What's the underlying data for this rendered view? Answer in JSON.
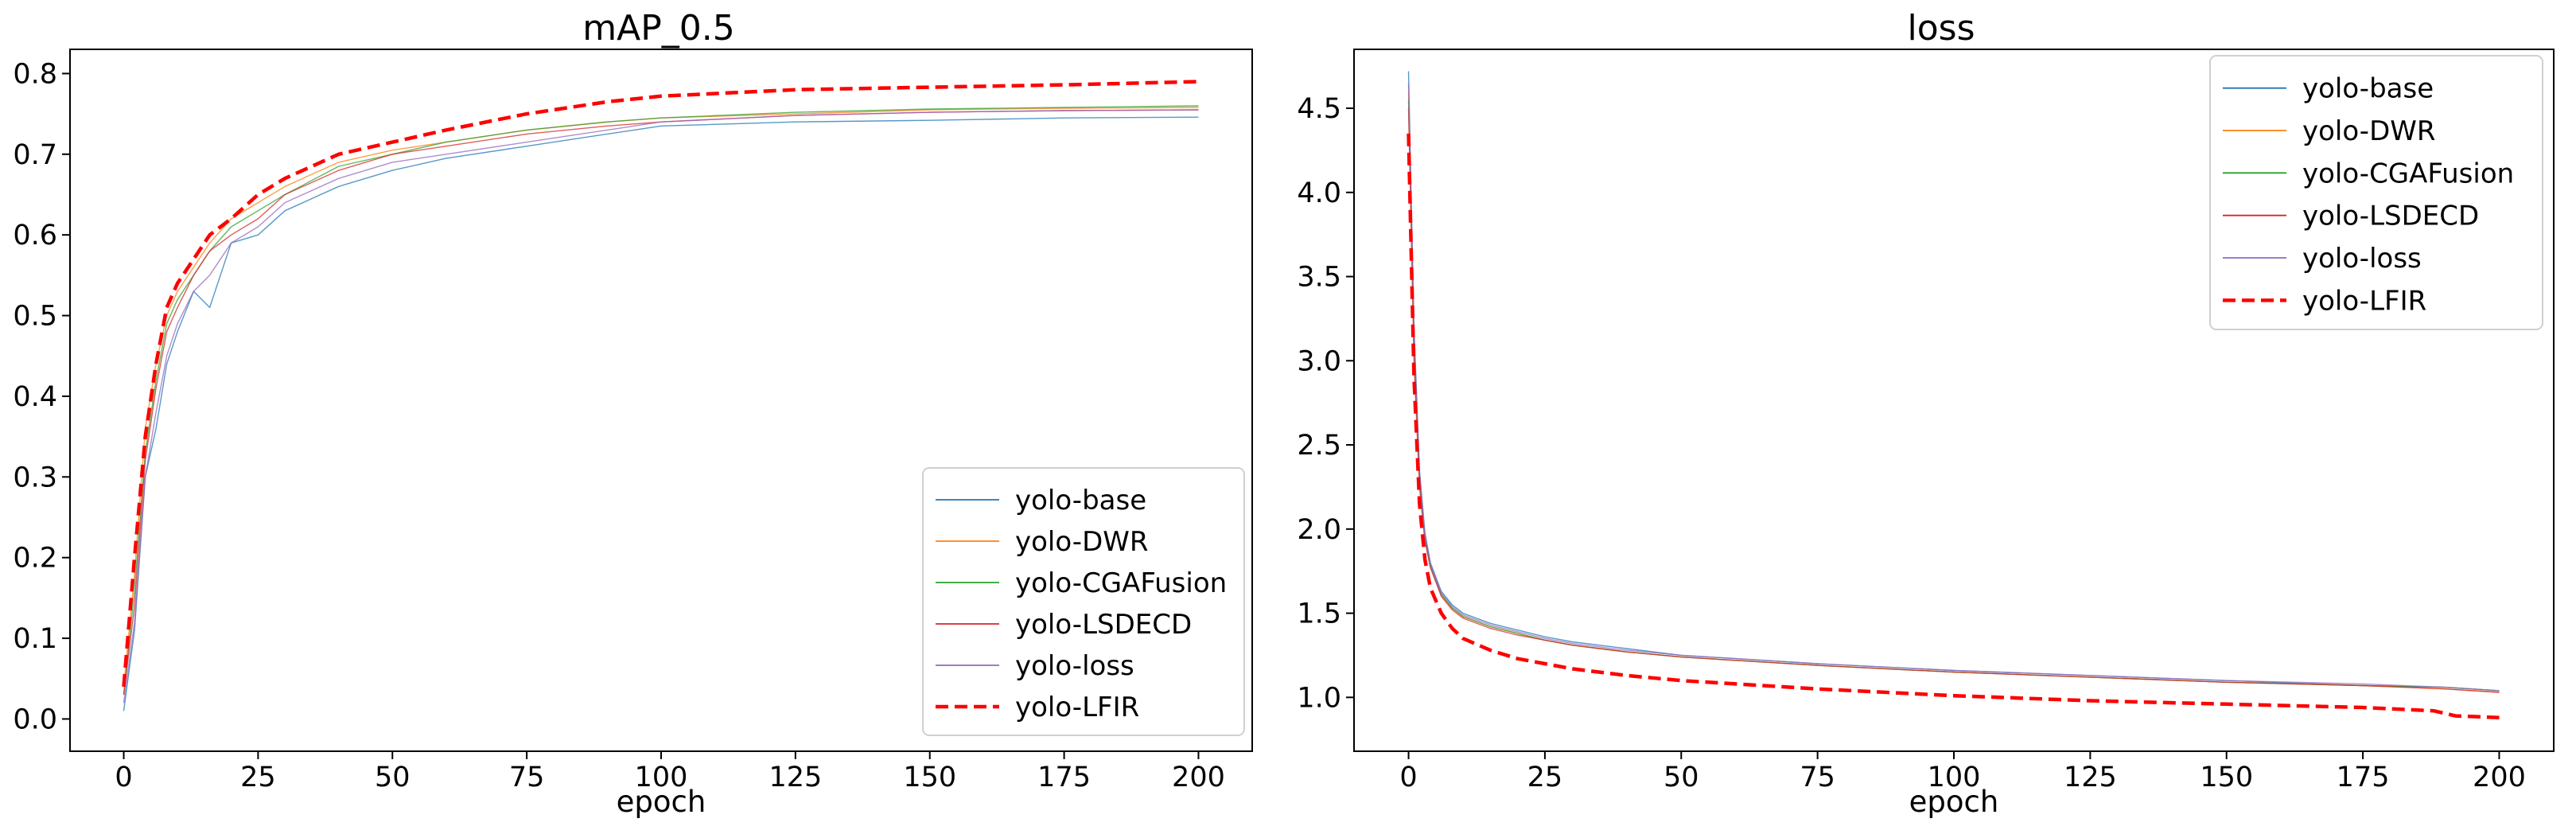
{
  "chart_data": [
    {
      "type": "line",
      "title": "mAP_0.5",
      "xlabel": "epoch",
      "ylabel": "",
      "xlim": [
        -10,
        210
      ],
      "ylim": [
        -0.04,
        0.83
      ],
      "xticks": [
        0,
        25,
        50,
        75,
        100,
        125,
        150,
        175,
        200
      ],
      "yticks": [
        0.0,
        0.1,
        0.2,
        0.3,
        0.4,
        0.5,
        0.6,
        0.7,
        0.8
      ],
      "ytick_labels": [
        "0.0",
        "0.1",
        "0.2",
        "0.3",
        "0.4",
        "0.5",
        "0.6",
        "0.7",
        "0.8"
      ],
      "legend_position": "lower-right",
      "series": [
        {
          "name": "yolo-base",
          "color": "#1f77b4",
          "dashed": false,
          "width": 1.4,
          "x": [
            0,
            2,
            4,
            6,
            8,
            10,
            13,
            16,
            20,
            25,
            30,
            40,
            50,
            60,
            75,
            90,
            100,
            125,
            150,
            175,
            200
          ],
          "y": [
            0.01,
            0.11,
            0.3,
            0.36,
            0.44,
            0.48,
            0.53,
            0.51,
            0.59,
            0.6,
            0.63,
            0.66,
            0.68,
            0.695,
            0.71,
            0.725,
            0.735,
            0.74,
            0.742,
            0.745,
            0.746
          ]
        },
        {
          "name": "yolo-DWR",
          "color": "#ff7f0e",
          "dashed": false,
          "width": 1.4,
          "x": [
            0,
            2,
            4,
            6,
            8,
            10,
            13,
            16,
            20,
            25,
            30,
            40,
            50,
            60,
            75,
            90,
            100,
            125,
            150,
            175,
            200
          ],
          "y": [
            0.04,
            0.18,
            0.36,
            0.44,
            0.5,
            0.53,
            0.56,
            0.59,
            0.62,
            0.64,
            0.66,
            0.69,
            0.705,
            0.715,
            0.73,
            0.74,
            0.745,
            0.75,
            0.755,
            0.757,
            0.758
          ]
        },
        {
          "name": "yolo-CGAFusion",
          "color": "#2ca02c",
          "dashed": false,
          "width": 1.4,
          "x": [
            0,
            2,
            4,
            6,
            8,
            10,
            13,
            16,
            20,
            25,
            30,
            40,
            50,
            60,
            75,
            90,
            100,
            125,
            150,
            175,
            200
          ],
          "y": [
            0.03,
            0.16,
            0.33,
            0.42,
            0.49,
            0.52,
            0.55,
            0.58,
            0.61,
            0.63,
            0.65,
            0.685,
            0.7,
            0.715,
            0.73,
            0.74,
            0.745,
            0.752,
            0.756,
            0.758,
            0.76
          ]
        },
        {
          "name": "yolo-LSDECD",
          "color": "#d62728",
          "dashed": false,
          "width": 1.4,
          "x": [
            0,
            2,
            4,
            6,
            8,
            10,
            13,
            16,
            20,
            25,
            30,
            40,
            50,
            60,
            75,
            90,
            100,
            125,
            150,
            175,
            200
          ],
          "y": [
            0.03,
            0.14,
            0.32,
            0.41,
            0.48,
            0.51,
            0.55,
            0.58,
            0.6,
            0.62,
            0.65,
            0.68,
            0.7,
            0.71,
            0.725,
            0.735,
            0.74,
            0.748,
            0.752,
            0.754,
            0.755
          ]
        },
        {
          "name": "yolo-loss",
          "color": "#9467bd",
          "dashed": false,
          "width": 1.4,
          "x": [
            0,
            2,
            4,
            6,
            8,
            10,
            13,
            16,
            20,
            25,
            30,
            40,
            50,
            60,
            75,
            90,
            100,
            125,
            150,
            175,
            200
          ],
          "y": [
            0.02,
            0.12,
            0.3,
            0.38,
            0.45,
            0.49,
            0.53,
            0.55,
            0.59,
            0.61,
            0.64,
            0.67,
            0.69,
            0.7,
            0.715,
            0.73,
            0.74,
            0.748,
            0.752,
            0.754,
            0.755
          ]
        },
        {
          "name": "yolo-LFIR",
          "color": "#ff0000",
          "dashed": true,
          "width": 4.5,
          "x": [
            0,
            2,
            4,
            6,
            8,
            10,
            13,
            16,
            20,
            25,
            30,
            40,
            50,
            60,
            75,
            90,
            100,
            125,
            150,
            175,
            200
          ],
          "y": [
            0.04,
            0.2,
            0.35,
            0.44,
            0.51,
            0.54,
            0.57,
            0.6,
            0.62,
            0.65,
            0.67,
            0.7,
            0.715,
            0.73,
            0.75,
            0.765,
            0.772,
            0.78,
            0.783,
            0.786,
            0.79
          ]
        }
      ]
    },
    {
      "type": "line",
      "title": "loss",
      "xlabel": "epoch",
      "ylabel": "",
      "xlim": [
        -10,
        210
      ],
      "ylim": [
        0.68,
        4.85
      ],
      "xticks": [
        0,
        25,
        50,
        75,
        100,
        125,
        150,
        175,
        200
      ],
      "yticks": [
        1.0,
        1.5,
        2.0,
        2.5,
        3.0,
        3.5,
        4.0,
        4.5
      ],
      "ytick_labels": [
        "1.0",
        "1.5",
        "2.0",
        "2.5",
        "3.0",
        "3.5",
        "4.0",
        "4.5"
      ],
      "legend_position": "upper-right",
      "series": [
        {
          "name": "yolo-base",
          "color": "#1f77b4",
          "dashed": false,
          "width": 1.4,
          "x": [
            0,
            1,
            2,
            3,
            4,
            6,
            8,
            10,
            15,
            20,
            25,
            30,
            40,
            50,
            75,
            100,
            125,
            150,
            175,
            190,
            200
          ],
          "y": [
            4.72,
            3.2,
            2.35,
            1.98,
            1.8,
            1.63,
            1.55,
            1.5,
            1.44,
            1.4,
            1.36,
            1.33,
            1.29,
            1.25,
            1.2,
            1.16,
            1.13,
            1.1,
            1.07,
            1.06,
            1.04
          ]
        },
        {
          "name": "yolo-DWR",
          "color": "#ff7f0e",
          "dashed": false,
          "width": 1.4,
          "x": [
            0,
            1,
            2,
            3,
            4,
            6,
            8,
            10,
            15,
            20,
            25,
            30,
            40,
            50,
            75,
            100,
            125,
            150,
            175,
            190,
            200
          ],
          "y": [
            4.6,
            3.1,
            2.3,
            1.95,
            1.78,
            1.61,
            1.53,
            1.48,
            1.42,
            1.38,
            1.34,
            1.31,
            1.27,
            1.24,
            1.19,
            1.15,
            1.12,
            1.09,
            1.07,
            1.05,
            1.03
          ]
        },
        {
          "name": "yolo-CGAFusion",
          "color": "#2ca02c",
          "dashed": false,
          "width": 1.4,
          "x": [
            0,
            1,
            2,
            3,
            4,
            6,
            8,
            10,
            15,
            20,
            25,
            30,
            40,
            50,
            75,
            100,
            125,
            150,
            175,
            190,
            200
          ],
          "y": [
            4.55,
            3.05,
            2.28,
            1.94,
            1.78,
            1.61,
            1.53,
            1.48,
            1.42,
            1.38,
            1.34,
            1.31,
            1.27,
            1.24,
            1.19,
            1.15,
            1.12,
            1.09,
            1.07,
            1.06,
            1.04
          ]
        },
        {
          "name": "yolo-LSDECD",
          "color": "#d62728",
          "dashed": false,
          "width": 1.4,
          "x": [
            0,
            1,
            2,
            3,
            4,
            6,
            8,
            10,
            15,
            20,
            25,
            30,
            40,
            50,
            75,
            100,
            125,
            150,
            175,
            190,
            200
          ],
          "y": [
            4.5,
            3.0,
            2.25,
            1.93,
            1.77,
            1.6,
            1.52,
            1.47,
            1.41,
            1.37,
            1.34,
            1.31,
            1.27,
            1.24,
            1.19,
            1.15,
            1.12,
            1.09,
            1.07,
            1.05,
            1.03
          ]
        },
        {
          "name": "yolo-loss",
          "color": "#9467bd",
          "dashed": false,
          "width": 1.4,
          "x": [
            0,
            1,
            2,
            3,
            4,
            6,
            8,
            10,
            15,
            20,
            25,
            30,
            40,
            50,
            75,
            100,
            125,
            150,
            175,
            190,
            200
          ],
          "y": [
            4.65,
            3.15,
            2.32,
            1.96,
            1.79,
            1.62,
            1.54,
            1.49,
            1.43,
            1.39,
            1.35,
            1.32,
            1.28,
            1.25,
            1.2,
            1.16,
            1.13,
            1.1,
            1.08,
            1.06,
            1.04
          ]
        },
        {
          "name": "yolo-LFIR",
          "color": "#ff0000",
          "dashed": true,
          "width": 4.5,
          "x": [
            0,
            1,
            2,
            3,
            4,
            6,
            8,
            10,
            15,
            20,
            25,
            30,
            40,
            50,
            75,
            100,
            125,
            150,
            175,
            188,
            192,
            200
          ],
          "y": [
            4.35,
            2.9,
            2.15,
            1.82,
            1.65,
            1.5,
            1.41,
            1.35,
            1.28,
            1.23,
            1.2,
            1.17,
            1.13,
            1.1,
            1.05,
            1.01,
            0.98,
            0.96,
            0.94,
            0.92,
            0.89,
            0.88
          ]
        }
      ]
    }
  ]
}
